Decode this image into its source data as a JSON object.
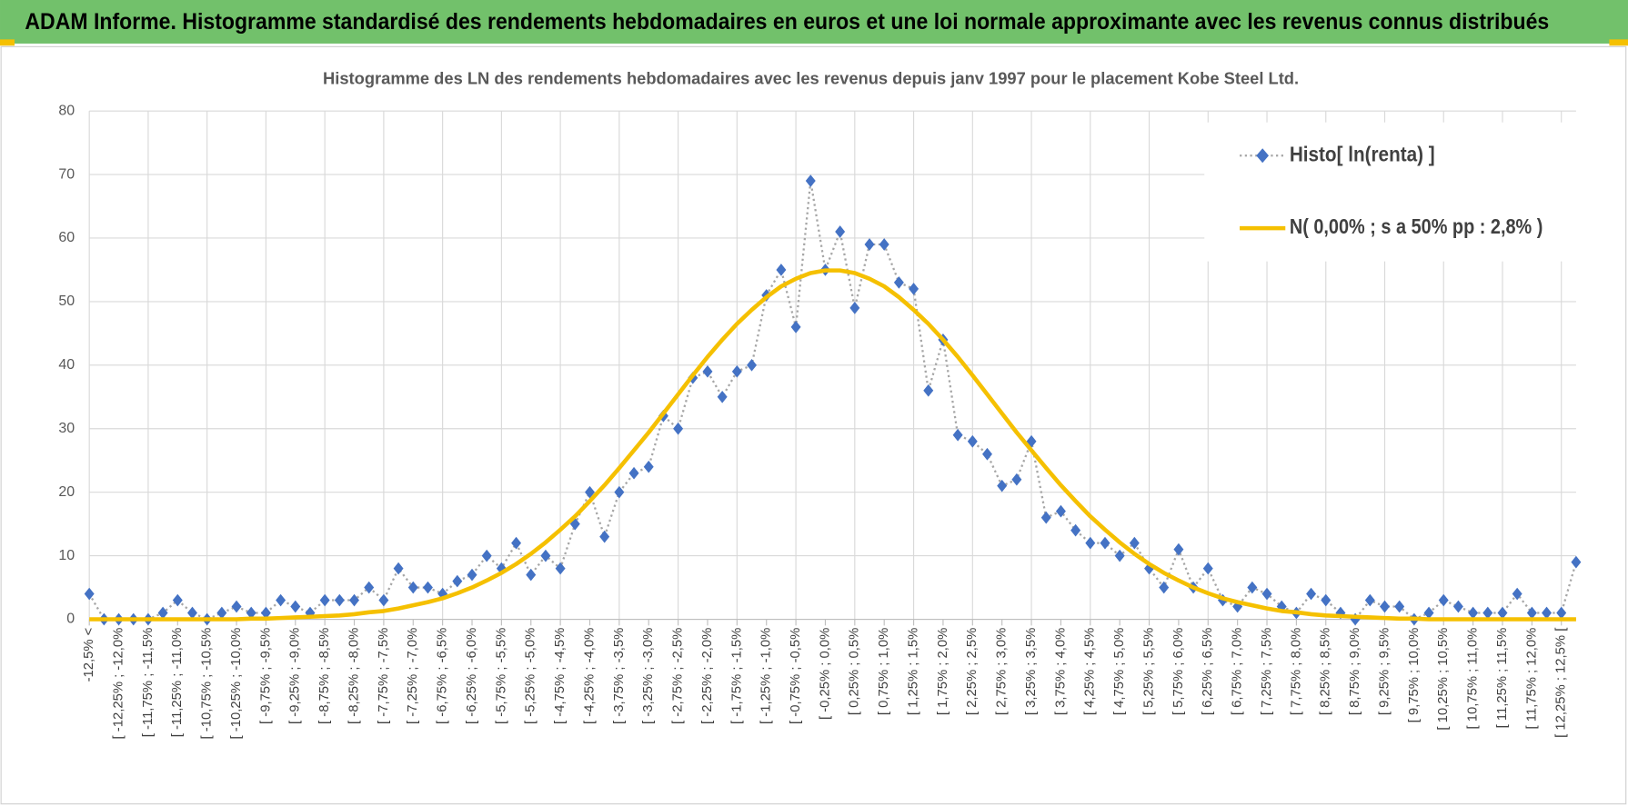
{
  "header": {
    "title": "ADAM Informe. Histogramme standardisé des rendements hebdomadaires en euros et une loi normale approximante avec les revenus connus distribués"
  },
  "chart_data": {
    "type": "line",
    "title": "Histogramme des LN des rendements hebdomadaires avec les revenus depuis janv 1997 pour le placement Kobe Steel Ltd.",
    "categories": [
      "-12,5% <",
      null,
      "[ -12,25% ; -12,0%",
      null,
      "[ -11,75% ; -11,5%",
      null,
      "[ -11,25% ; -11,0%",
      null,
      "[ -10,75% ; -10,5%",
      null,
      "[ -10,25% ; -10,0%",
      null,
      "[ -9,75% ; -9,5%",
      null,
      "[ -9,25% ; -9,0%",
      null,
      "[ -8,75% ; -8,5%",
      null,
      "[ -8,25% ; -8,0%",
      null,
      "[ -7,75% ; -7,5%",
      null,
      "[ -7,25% ; -7,0%",
      null,
      "[ -6,75% ; -6,5%",
      null,
      "[ -6,25% ; -6,0%",
      null,
      "[ -5,75% ; -5,5%",
      null,
      "[ -5,25% ; -5,0%",
      null,
      "[ -4,75% ; -4,5%",
      null,
      "[ -4,25% ; -4,0%",
      null,
      "[ -3,75% ; -3,5%",
      null,
      "[ -3,25% ; -3,0%",
      null,
      "[ -2,75% ; -2,5%",
      null,
      "[ -2,25% ; -2,0%",
      null,
      "[ -1,75% ; -1,5%",
      null,
      "[ -1,25% ; -1,0%",
      null,
      "[ -0,75% ; -0,5%",
      null,
      "[ -0,25% ; 0,0%",
      null,
      "[ 0,25% ; 0,5%",
      null,
      "[ 0,75% ; 1,0%",
      null,
      "[ 1,25% ; 1,5%",
      null,
      "[ 1,75% ; 2,0%",
      null,
      "[ 2,25% ; 2,5%",
      null,
      "[ 2,75% ; 3,0%",
      null,
      "[ 3,25% ; 3,5%",
      null,
      "[ 3,75% ; 4,0%",
      null,
      "[ 4,25% ; 4,5%",
      null,
      "[ 4,75% ; 5,0%",
      null,
      "[ 5,25% ; 5,5%",
      null,
      "[ 5,75% ; 6,0%",
      null,
      "[ 6,25% ; 6,5%",
      null,
      "[ 6,75% ; 7,0%",
      null,
      "[ 7,25% ; 7,5%",
      null,
      "[ 7,75% ; 8,0%",
      null,
      "[ 8,25% ; 8,5%",
      null,
      "[ 8,75% ; 9,0%",
      null,
      "[ 9,25% ; 9,5%",
      null,
      "[ 9,75% ; 10,0%",
      null,
      "[ 10,25% ; 10,5%",
      null,
      "[ 10,75% ; 11,0%",
      null,
      "[ 11,25% ; 11,5%",
      null,
      "[ 11,75% ; 12,0%",
      null,
      "[ 12,25% ; 12,5% [",
      null
    ],
    "series": [
      {
        "name": "Histo[ ln(renta) ]",
        "color": "#4472c4",
        "line_color": "#a6a6a6",
        "values": [
          4,
          0,
          0,
          0,
          0,
          1,
          3,
          1,
          0,
          1,
          2,
          1,
          1,
          3,
          2,
          1,
          3,
          3,
          3,
          5,
          3,
          8,
          5,
          5,
          4,
          6,
          7,
          10,
          8,
          12,
          7,
          10,
          8,
          15,
          20,
          13,
          20,
          23,
          24,
          32,
          30,
          38,
          39,
          35,
          39,
          40,
          51,
          55,
          46,
          69,
          55,
          61,
          49,
          59,
          59,
          53,
          52,
          36,
          44,
          29,
          28,
          26,
          21,
          22,
          28,
          16,
          17,
          14,
          12,
          12,
          10,
          12,
          8,
          5,
          11,
          5,
          8,
          3,
          2,
          5,
          4,
          2,
          1,
          4,
          3,
          1,
          0,
          3,
          2,
          2,
          0,
          1,
          3,
          2,
          1,
          1,
          1,
          4,
          1,
          1,
          1,
          9
        ]
      },
      {
        "name": "N( 0,00% ; s a 50% pp : 2,8% )",
        "color": "#f5c000",
        "values": [
          0,
          0,
          0,
          0,
          0,
          0,
          0,
          0,
          0,
          0,
          0,
          0.1,
          0.1,
          0.2,
          0.3,
          0.4,
          0.5,
          0.6,
          0.8,
          1.1,
          1.3,
          1.7,
          2.2,
          2.7,
          3.3,
          4.1,
          5.0,
          6.1,
          7.3,
          8.7,
          10.3,
          12.1,
          14.1,
          16.2,
          18.6,
          21.1,
          23.8,
          26.6,
          29.4,
          32.4,
          35.4,
          38.4,
          41.3,
          44.0,
          46.5,
          48.7,
          50.7,
          52.4,
          53.6,
          54.5,
          54.9,
          54.9,
          54.5,
          53.6,
          52.4,
          50.7,
          48.7,
          46.5,
          44.0,
          41.3,
          38.4,
          35.4,
          32.4,
          29.4,
          26.6,
          23.8,
          21.1,
          18.6,
          16.2,
          14.1,
          12.1,
          10.3,
          8.7,
          7.3,
          6.1,
          5.0,
          4.1,
          3.3,
          2.7,
          2.2,
          1.7,
          1.3,
          1.1,
          0.8,
          0.6,
          0.5,
          0.4,
          0.3,
          0.2,
          0.1,
          0.1,
          0,
          0,
          0,
          0,
          0,
          0,
          0,
          0,
          0,
          0,
          0
        ]
      }
    ],
    "ylim": [
      0,
      80
    ],
    "yticks": [
      0,
      10,
      20,
      30,
      40,
      50,
      60,
      70,
      80
    ],
    "grid": true,
    "legend": "upper right"
  }
}
